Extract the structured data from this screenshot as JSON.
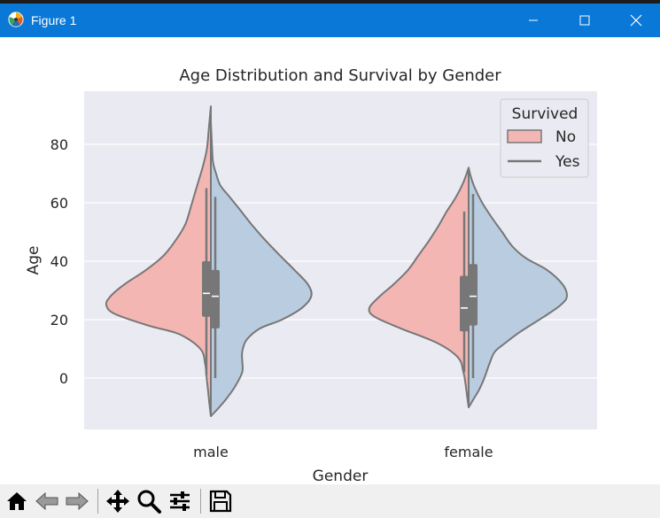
{
  "window": {
    "title": "Figure 1",
    "icons": [
      "matplotlib-logo-icon",
      "minimize-icon",
      "maximize-icon",
      "close-icon"
    ]
  },
  "toolbar": {
    "tools": [
      "home-icon",
      "back-icon",
      "forward-icon",
      "pan-icon",
      "zoom-icon",
      "configure-subplots-icon",
      "save-icon"
    ]
  },
  "chart_data": {
    "type": "violin",
    "title": "Age Distribution and Survival by Gender",
    "xlabel": "Gender",
    "ylabel": "Age",
    "categories": [
      "male",
      "female"
    ],
    "ylim": [
      -18,
      100
    ],
    "yticks": [
      0,
      20,
      40,
      60,
      80
    ],
    "grid": true,
    "legend": {
      "title": "Survived",
      "placement": "top-right",
      "entries": [
        "No",
        "Yes"
      ]
    },
    "colors": {
      "No": "#f4b6b3",
      "Yes": "#b9cce0",
      "outline": "#777777",
      "background": "#eaeaf2"
    },
    "series": [
      {
        "name": "No",
        "side": "left",
        "violins": [
          {
            "category": "male",
            "profile": [
              [
                0,
                -13
              ],
              [
                0.01,
                -10
              ],
              [
                0.025,
                -5
              ],
              [
                0.04,
                0
              ],
              [
                0.055,
                5
              ],
              [
                0.1,
                10
              ],
              [
                0.3,
                15
              ],
              [
                0.6,
                18
              ],
              [
                0.92,
                22
              ],
              [
                1,
                25
              ],
              [
                0.96,
                28
              ],
              [
                0.83,
                32
              ],
              [
                0.62,
                37
              ],
              [
                0.45,
                42
              ],
              [
                0.32,
                48
              ],
              [
                0.24,
                53
              ],
              [
                0.18,
                60
              ],
              [
                0.13,
                66
              ],
              [
                0.08,
                72
              ],
              [
                0.04,
                78
              ],
              [
                0.02,
                85
              ],
              [
                0,
                93
              ]
            ],
            "box": {
              "q1": 21,
              "median": 29,
              "q3": 40,
              "whisker_low": 1,
              "whisker_high": 65
            }
          },
          {
            "category": "female",
            "profile": [
              [
                0,
                -10
              ],
              [
                0.015,
                -6
              ],
              [
                0.03,
                -2
              ],
              [
                0.05,
                2
              ],
              [
                0.1,
                7
              ],
              [
                0.3,
                12
              ],
              [
                0.65,
                17
              ],
              [
                0.9,
                21
              ],
              [
                0.95,
                24
              ],
              [
                0.85,
                28
              ],
              [
                0.72,
                32
              ],
              [
                0.58,
                37
              ],
              [
                0.48,
                42
              ],
              [
                0.38,
                47
              ],
              [
                0.29,
                52
              ],
              [
                0.21,
                57
              ],
              [
                0.12,
                62
              ],
              [
                0.05,
                67
              ],
              [
                0,
                72
              ]
            ],
            "box": {
              "q1": 16,
              "median": 24,
              "q3": 35,
              "whisker_low": 2,
              "whisker_high": 57
            }
          }
        ]
      },
      {
        "name": "Yes",
        "side": "right",
        "violins": [
          {
            "category": "male",
            "profile": [
              [
                0,
                -13
              ],
              [
                0.08,
                -10
              ],
              [
                0.15,
                -7
              ],
              [
                0.23,
                -3
              ],
              [
                0.3,
                2
              ],
              [
                0.3,
                6
              ],
              [
                0.3,
                9
              ],
              [
                0.34,
                13
              ],
              [
                0.47,
                17
              ],
              [
                0.68,
                20
              ],
              [
                0.87,
                24
              ],
              [
                0.96,
                28
              ],
              [
                0.93,
                32
              ],
              [
                0.8,
                37
              ],
              [
                0.66,
                42
              ],
              [
                0.5,
                48
              ],
              [
                0.38,
                53
              ],
              [
                0.27,
                58
              ],
              [
                0.18,
                62
              ],
              [
                0.09,
                66
              ],
              [
                0.05,
                70
              ],
              [
                0.02,
                74
              ],
              [
                0.01,
                80
              ],
              [
                0,
                88
              ]
            ],
            "box": {
              "q1": 17,
              "median": 28,
              "q3": 37,
              "whisker_low": 0,
              "whisker_high": 62
            }
          },
          {
            "category": "female",
            "profile": [
              [
                0,
                -10
              ],
              [
                0.05,
                -7
              ],
              [
                0.1,
                -4
              ],
              [
                0.15,
                0
              ],
              [
                0.2,
                5
              ],
              [
                0.25,
                9
              ],
              [
                0.35,
                12
              ],
              [
                0.5,
                16
              ],
              [
                0.72,
                21
              ],
              [
                0.88,
                25
              ],
              [
                0.94,
                28
              ],
              [
                0.9,
                32
              ],
              [
                0.75,
                37
              ],
              [
                0.55,
                41
              ],
              [
                0.42,
                45
              ],
              [
                0.32,
                50
              ],
              [
                0.22,
                55
              ],
              [
                0.13,
                60
              ],
              [
                0.06,
                65
              ],
              [
                0.02,
                69
              ],
              [
                0,
                72
              ]
            ],
            "box": {
              "q1": 18,
              "median": 28,
              "q3": 39,
              "whisker_low": 0,
              "whisker_high": 63
            }
          }
        ]
      }
    ]
  }
}
